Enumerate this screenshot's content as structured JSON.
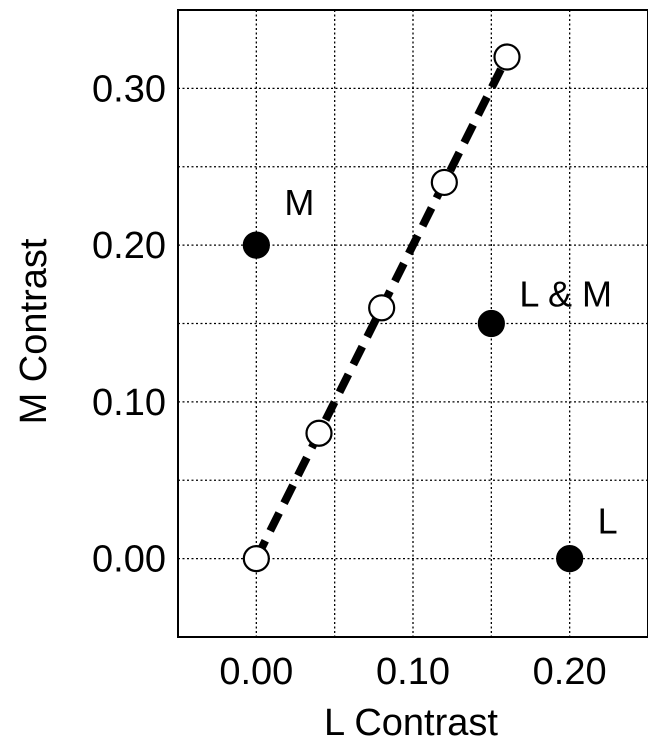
{
  "chart_data": {
    "type": "scatter",
    "title": "",
    "xlabel": "L Contrast",
    "ylabel": "M Contrast",
    "xlim": [
      -0.05,
      0.25
    ],
    "ylim": [
      -0.05,
      0.35
    ],
    "x_ticks": [
      "0.00",
      "0.10",
      "0.20"
    ],
    "x_tick_values": [
      0.0,
      0.1,
      0.2
    ],
    "y_ticks": [
      "0.00",
      "0.10",
      "0.20",
      "0.30"
    ],
    "y_tick_values": [
      0.0,
      0.1,
      0.2,
      0.3
    ],
    "grid": true,
    "grid_step": 0.05,
    "series": [
      {
        "marker": "filled-circle",
        "color": "#000000",
        "points": [
          {
            "x": 0.0,
            "y": 0.2,
            "label": "M"
          },
          {
            "x": 0.15,
            "y": 0.15,
            "label": "L & M"
          },
          {
            "x": 0.2,
            "y": 0.0,
            "label": "L"
          }
        ]
      },
      {
        "marker": "open-circle",
        "color": "#000000",
        "points": [
          {
            "x": 0.0,
            "y": 0.0
          },
          {
            "x": 0.04,
            "y": 0.08
          },
          {
            "x": 0.08,
            "y": 0.16
          },
          {
            "x": 0.12,
            "y": 0.24
          },
          {
            "x": 0.16,
            "y": 0.32
          }
        ]
      }
    ],
    "fit_line": {
      "style": "dashed",
      "color": "#000000",
      "x": [
        0.0,
        0.16
      ],
      "y": [
        0.0,
        0.32
      ]
    }
  }
}
